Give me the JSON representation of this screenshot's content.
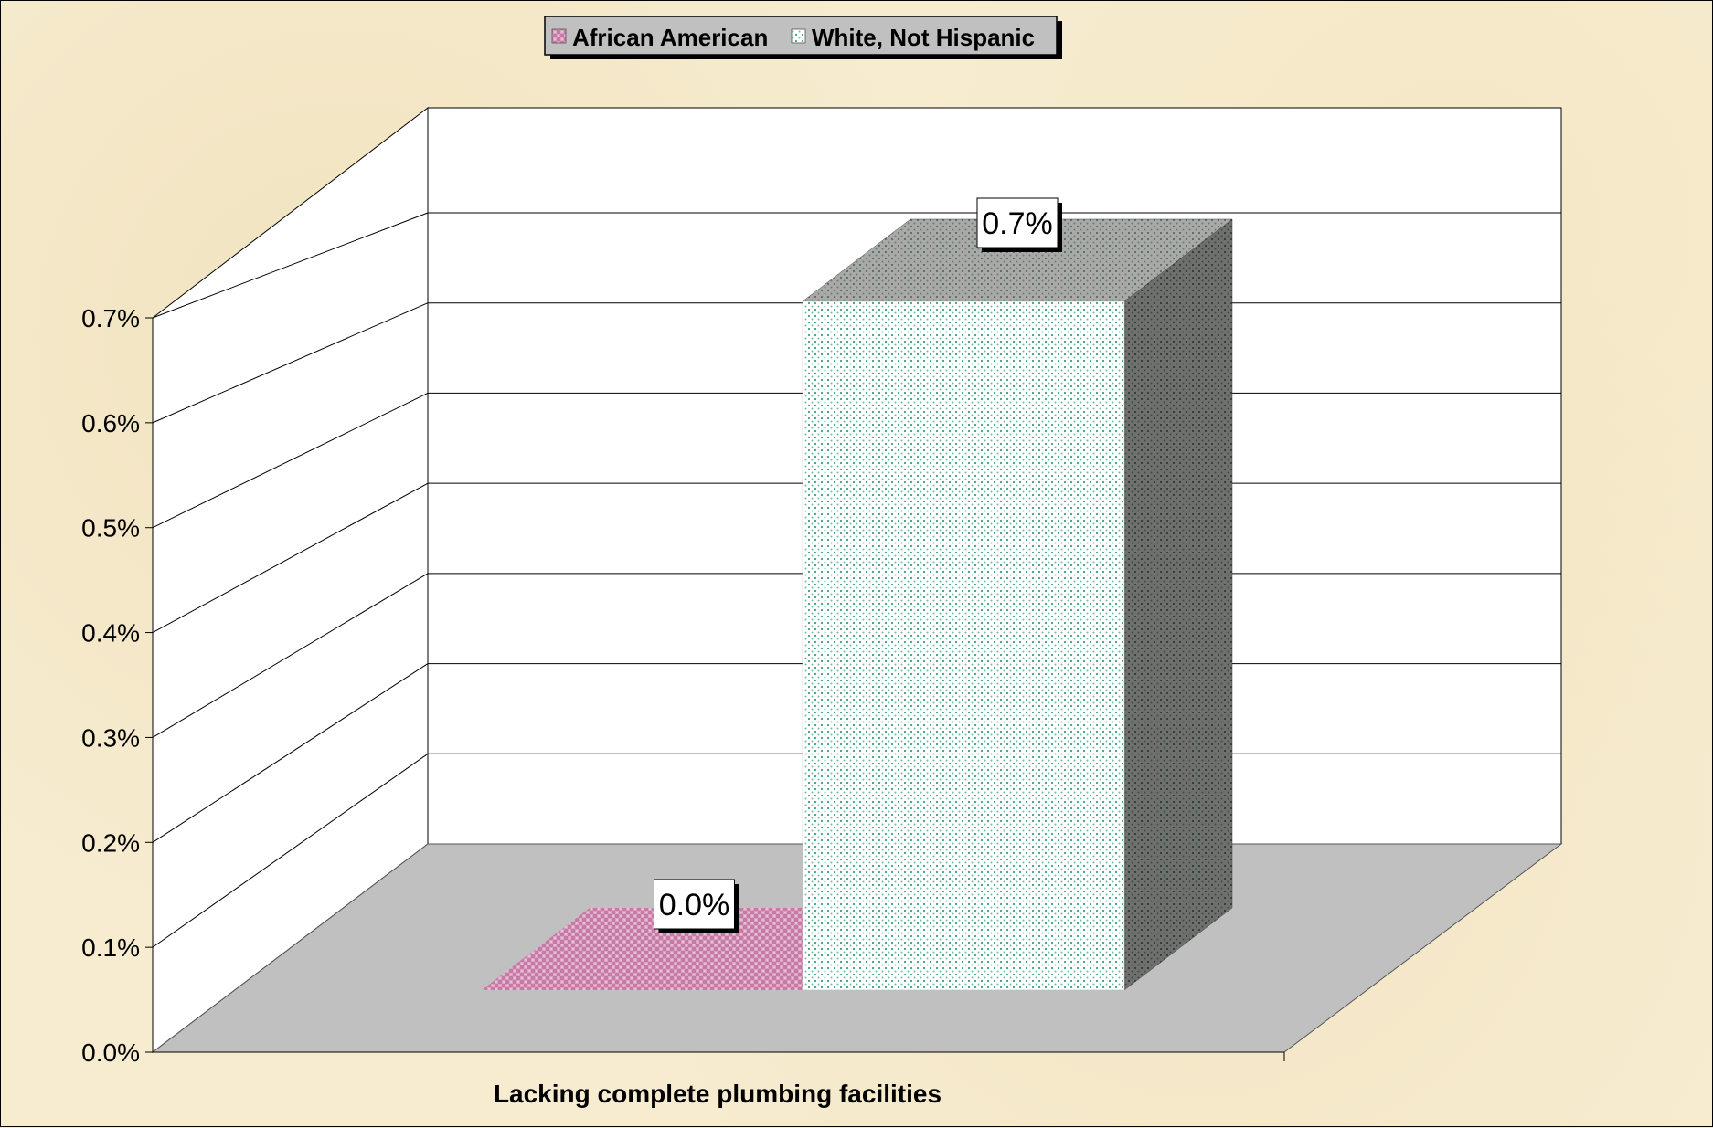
{
  "chart_data": {
    "type": "bar",
    "categories": [
      "Lacking complete plumbing facilities"
    ],
    "series": [
      {
        "name": "African American",
        "values": [
          0.0
        ],
        "labels": [
          "0.0%"
        ],
        "color": "#d9a3c3"
      },
      {
        "name": "White, Not Hispanic",
        "values": [
          0.7
        ],
        "labels": [
          "0.7%"
        ],
        "color": "#e8f5ee"
      }
    ],
    "ylim": [
      0,
      0.7
    ],
    "yticks": [
      0.0,
      0.1,
      0.2,
      0.3,
      0.4,
      0.5,
      0.6,
      0.7
    ],
    "ytick_labels": [
      "0.0%",
      "0.1%",
      "0.2%",
      "0.3%",
      "0.4%",
      "0.5%",
      "0.6%",
      "0.7%"
    ],
    "grid": true,
    "three_d": true,
    "legend_position": "top",
    "colors": {
      "background": "#f7ecd0",
      "floor": "#c0c0c0",
      "walls": "#ffffff",
      "white_bar_dots": "#3aa07a",
      "african_american_pattern": "#c77aa3",
      "bar_side": "#6e6e6e",
      "bar_top": "#a8a8a8"
    }
  }
}
